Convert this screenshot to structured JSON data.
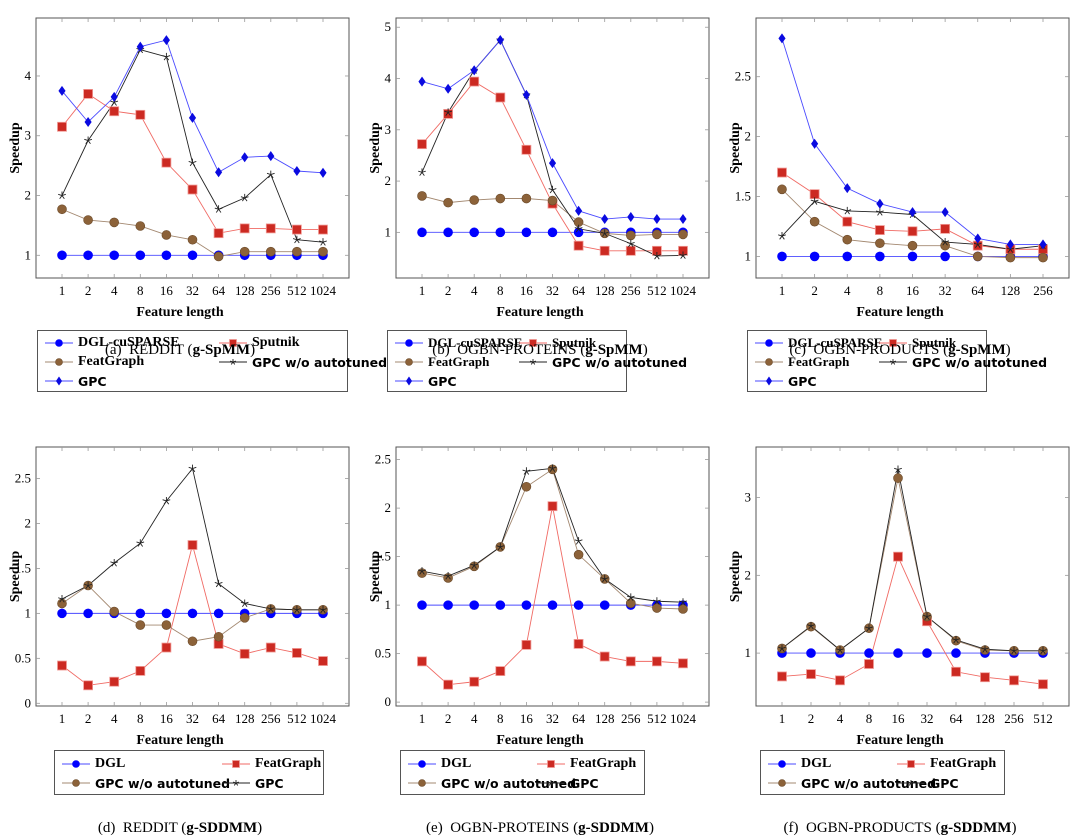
{
  "chart_data": [
    {
      "id": "a",
      "type": "line",
      "caption_prefix": "(a)  REDDIT (",
      "caption_bold": "g-SpMM",
      "caption_suffix": ")",
      "xlabel": "Feature length",
      "ylabel": "Speedup",
      "categories": [
        "1",
        "2",
        "4",
        "8",
        "16",
        "32",
        "64",
        "128",
        "256",
        "512",
        "1024"
      ],
      "ylim": [
        0.62,
        4.97
      ],
      "yticks": [
        1,
        2,
        3,
        4
      ],
      "ytick_labels": [
        "1",
        "2",
        "3",
        "4"
      ],
      "legend_layout": "three-rows",
      "series": [
        {
          "name": "DGL-cuSPARSE",
          "style": "dgl",
          "values": [
            1,
            1,
            1,
            1,
            1,
            1,
            1,
            1,
            1,
            1,
            1
          ]
        },
        {
          "name": "Sputnik",
          "style": "red",
          "values": [
            3.15,
            3.7,
            3.41,
            3.35,
            2.55,
            2.1,
            1.37,
            1.45,
            1.45,
            1.43,
            1.43
          ]
        },
        {
          "name": "FeatGraph",
          "style": "brown",
          "values": [
            1.77,
            1.59,
            1.55,
            1.49,
            1.34,
            1.26,
            0.98,
            1.06,
            1.06,
            1.06,
            1.06
          ]
        },
        {
          "name": "GPC w/o autotuned",
          "style": "star",
          "values": [
            2.0,
            2.92,
            3.56,
            4.44,
            4.32,
            2.55,
            1.77,
            1.96,
            2.35,
            1.26,
            1.22
          ]
        },
        {
          "name": "GPC",
          "style": "diamond",
          "values": [
            3.75,
            3.23,
            3.65,
            4.49,
            4.6,
            3.3,
            2.39,
            2.64,
            2.66,
            2.41,
            2.38
          ]
        }
      ]
    },
    {
      "id": "b",
      "type": "line",
      "caption_prefix": "(b)  OGBN-PROTEINS (",
      "caption_bold": "g-SpMM",
      "caption_suffix": ")",
      "xlabel": "Feature length",
      "ylabel": "Speedup",
      "categories": [
        "1",
        "2",
        "4",
        "8",
        "16",
        "32",
        "64",
        "128",
        "256",
        "512",
        "1024"
      ],
      "ylim": [
        0.11,
        5.18
      ],
      "yticks": [
        1,
        2,
        3,
        4,
        5
      ],
      "ytick_labels": [
        "1",
        "2",
        "3",
        "4",
        "5"
      ],
      "legend_layout": "three-rows",
      "series": [
        {
          "name": "DGL-cuSPARSE",
          "style": "dgl",
          "values": [
            1,
            1,
            1,
            1,
            1,
            1,
            1,
            1,
            1,
            1,
            1
          ]
        },
        {
          "name": "Sputnik",
          "style": "red",
          "values": [
            2.72,
            3.31,
            3.94,
            3.63,
            2.61,
            1.56,
            0.74,
            0.64,
            0.64,
            0.64,
            0.64
          ]
        },
        {
          "name": "FeatGraph",
          "style": "brown",
          "values": [
            1.71,
            1.58,
            1.63,
            1.66,
            1.66,
            1.62,
            1.2,
            0.98,
            0.94,
            0.96,
            0.96
          ]
        },
        {
          "name": "GPC w/o autotuned",
          "style": "star",
          "values": [
            2.17,
            3.34,
            4.16,
            4.75,
            3.68,
            1.83,
            1.07,
            0.98,
            0.78,
            0.54,
            0.55
          ]
        },
        {
          "name": "GPC",
          "style": "diamond",
          "values": [
            3.94,
            3.8,
            4.16,
            4.75,
            3.68,
            2.35,
            1.42,
            1.26,
            1.3,
            1.26,
            1.26
          ]
        }
      ]
    },
    {
      "id": "c",
      "type": "line",
      "caption_prefix": "(c)  OGBN-PRODUCTS (",
      "caption_bold": "g-SpMM",
      "caption_suffix": ")",
      "xlabel": "Feature length",
      "ylabel": "Speedup",
      "categories": [
        "1",
        "2",
        "4",
        "8",
        "16",
        "32",
        "64",
        "128",
        "256"
      ],
      "ylim": [
        0.82,
        2.99
      ],
      "yticks": [
        1,
        1.5,
        2,
        2.5
      ],
      "ytick_labels": [
        "1",
        "1.5",
        "2",
        "2.5"
      ],
      "legend_layout": "three-rows",
      "series": [
        {
          "name": "DGL-cuSPARSE",
          "style": "dgl",
          "values": [
            1,
            1,
            1,
            1,
            1,
            1,
            1,
            1,
            1
          ]
        },
        {
          "name": "Sputnik",
          "style": "red",
          "values": [
            1.7,
            1.52,
            1.29,
            1.22,
            1.21,
            1.23,
            1.09,
            1.06,
            1.06
          ]
        },
        {
          "name": "FeatGraph",
          "style": "brown",
          "values": [
            1.56,
            1.29,
            1.14,
            1.11,
            1.09,
            1.09,
            1.0,
            0.99,
            0.99
          ]
        },
        {
          "name": "GPC w/o autotuned",
          "style": "star",
          "values": [
            1.17,
            1.46,
            1.38,
            1.37,
            1.35,
            1.12,
            1.1,
            1.06,
            1.09
          ]
        },
        {
          "name": "GPC",
          "style": "diamond",
          "values": [
            2.82,
            1.94,
            1.57,
            1.44,
            1.37,
            1.37,
            1.15,
            1.1,
            1.1
          ]
        }
      ]
    },
    {
      "id": "d",
      "type": "line",
      "caption_prefix": "(d)  REDDIT (",
      "caption_bold": "g-SDDMM",
      "caption_suffix": ")",
      "xlabel": "Feature length",
      "ylabel": "Speedup",
      "categories": [
        "1",
        "2",
        "4",
        "8",
        "16",
        "32",
        "64",
        "128",
        "256",
        "512",
        "1024"
      ],
      "ylim": [
        -0.03,
        2.85
      ],
      "yticks": [
        0,
        0.5,
        1,
        1.5,
        2,
        2.5
      ],
      "ytick_labels": [
        "0",
        "0.5",
        "1",
        "1.5",
        "2",
        "2.5"
      ],
      "legend_layout": "two-rows",
      "series": [
        {
          "name": "DGL",
          "style": "dgl-light",
          "values": [
            1,
            1,
            1,
            1,
            1,
            1,
            1,
            1,
            1,
            1,
            1
          ]
        },
        {
          "name": "FeatGraph",
          "style": "red",
          "values": [
            0.42,
            0.2,
            0.24,
            0.36,
            0.62,
            1.76,
            0.66,
            0.55,
            0.62,
            0.56,
            0.47
          ]
        },
        {
          "name": "GPC w/o autotuned",
          "style": "brown",
          "values": [
            1.11,
            1.31,
            1.02,
            0.87,
            0.87,
            0.69,
            0.74,
            0.95,
            1.05,
            1.04,
            1.04
          ]
        },
        {
          "name": "GPC",
          "style": "star",
          "values": [
            1.16,
            1.31,
            1.56,
            1.78,
            2.25,
            2.61,
            1.33,
            1.11,
            1.05,
            1.04,
            1.04
          ]
        }
      ]
    },
    {
      "id": "e",
      "type": "line",
      "caption_prefix": "(e)  OGBN-PROTEINS (",
      "caption_bold": "g-SDDMM",
      "caption_suffix": ")",
      "xlabel": "Feature length",
      "ylabel": "Speedup",
      "categories": [
        "1",
        "2",
        "4",
        "8",
        "16",
        "32",
        "64",
        "128",
        "256",
        "512",
        "1024"
      ],
      "ylim": [
        -0.04,
        2.63
      ],
      "yticks": [
        0,
        0.5,
        1,
        1.5,
        2,
        2.5
      ],
      "ytick_labels": [
        "0",
        "0.5",
        "1",
        "1.5",
        "2",
        "2.5"
      ],
      "legend_layout": "two-rows",
      "series": [
        {
          "name": "DGL",
          "style": "dgl-light",
          "values": [
            1,
            1,
            1,
            1,
            1,
            1,
            1,
            1,
            1,
            1,
            1
          ]
        },
        {
          "name": "FeatGraph",
          "style": "red",
          "values": [
            0.42,
            0.18,
            0.21,
            0.32,
            0.59,
            2.02,
            0.6,
            0.47,
            0.42,
            0.42,
            0.4
          ]
        },
        {
          "name": "GPC w/o autotuned",
          "style": "brown",
          "values": [
            1.33,
            1.28,
            1.4,
            1.6,
            2.22,
            2.4,
            1.52,
            1.27,
            1.02,
            0.97,
            0.96
          ]
        },
        {
          "name": "GPC",
          "style": "star",
          "values": [
            1.35,
            1.3,
            1.41,
            1.6,
            2.38,
            2.41,
            1.66,
            1.27,
            1.08,
            1.04,
            1.03
          ]
        }
      ]
    },
    {
      "id": "f",
      "type": "line",
      "caption_prefix": "(f)  OGBN-PRODUCTS (",
      "caption_bold": "g-SDDMM",
      "caption_suffix": ")",
      "xlabel": "Feature length",
      "ylabel": "Speedup",
      "categories": [
        "1",
        "2",
        "4",
        "8",
        "16",
        "32",
        "64",
        "128",
        "256",
        "512"
      ],
      "ylim": [
        0.32,
        3.65
      ],
      "yticks": [
        1,
        2,
        3
      ],
      "ytick_labels": [
        "1",
        "2",
        "3"
      ],
      "legend_layout": "two-rows",
      "series": [
        {
          "name": "DGL",
          "style": "dgl-light",
          "values": [
            1,
            1,
            1,
            1,
            1,
            1,
            1,
            1,
            1,
            1
          ]
        },
        {
          "name": "FeatGraph",
          "style": "red",
          "values": [
            0.7,
            0.73,
            0.65,
            0.86,
            2.24,
            1.41,
            0.76,
            0.69,
            0.65,
            0.6
          ]
        },
        {
          "name": "GPC w/o autotuned",
          "style": "brown",
          "values": [
            1.06,
            1.34,
            1.04,
            1.32,
            3.25,
            1.47,
            1.16,
            1.04,
            1.03,
            1.03
          ]
        },
        {
          "name": "GPC",
          "style": "star",
          "values": [
            1.06,
            1.35,
            1.04,
            1.32,
            3.36,
            1.47,
            1.17,
            1.05,
            1.03,
            1.03
          ]
        }
      ]
    }
  ],
  "colors": {
    "dgl": "#0000ff",
    "dgl_line": "#4a4aff",
    "red": "#cc2a22",
    "red_line": "#f06a64",
    "brown": "#8c6239",
    "brown_line": "#a38870",
    "star": "#222222",
    "diamond": "#0a0ae0",
    "axis": "#555555"
  }
}
